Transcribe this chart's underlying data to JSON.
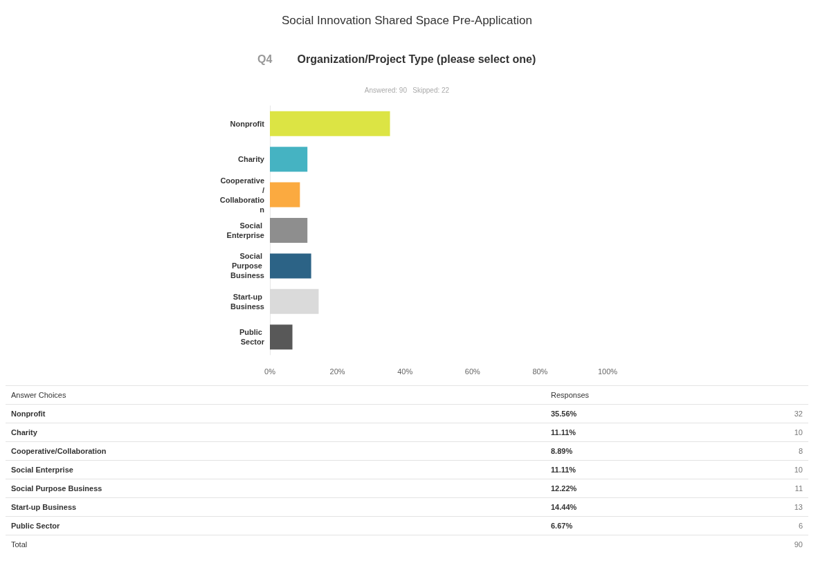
{
  "chart_data": {
    "type": "bar",
    "orientation": "horizontal",
    "title": "Social Innovation Shared Space Pre-Application",
    "subtitle": "Q4 Organization/Project Type (please select one)",
    "categories": [
      "Nonprofit",
      "Charity",
      "Cooperative/Collaboration",
      "Social Enterprise",
      "Social Purpose Business",
      "Start-up Business",
      "Public Sector"
    ],
    "values": [
      35.56,
      11.11,
      8.89,
      11.11,
      12.22,
      14.44,
      6.67
    ],
    "colors": [
      "#dce444",
      "#45b3c2",
      "#fbaa40",
      "#8e8e8e",
      "#2c6386",
      "#dadada",
      "#585858"
    ],
    "xlim": [
      0,
      100
    ],
    "xticks": [
      {
        "value": 0,
        "label": "0%"
      },
      {
        "value": 20,
        "label": "20%"
      },
      {
        "value": 40,
        "label": "40%"
      },
      {
        "value": 60,
        "label": "60%"
      },
      {
        "value": 80,
        "label": "80%"
      },
      {
        "value": 100,
        "label": "100%"
      }
    ],
    "grid": false,
    "annotations": [
      "Answered: 90   Skipped: 22",
      "Answer Choices",
      "Responses",
      "35.56%",
      "32",
      "11.11%",
      "10",
      "8.89%",
      "8",
      "11.11%",
      "10",
      "12.22%",
      "11",
      "14.44%",
      "13",
      "6.67%",
      "6",
      "Total",
      "90"
    ]
  }
}
